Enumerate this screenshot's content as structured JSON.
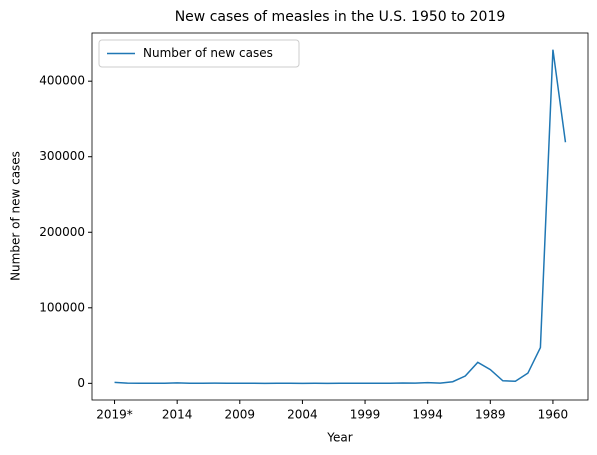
{
  "chart_data": {
    "type": "line",
    "title": "New cases of measles in the U.S. 1950 to 2019",
    "xlabel": "Year",
    "ylabel": "Number of new cases",
    "categories": [
      "2019*",
      null,
      null,
      null,
      null,
      "2014",
      null,
      null,
      null,
      null,
      "2009",
      null,
      null,
      null,
      null,
      "2004",
      null,
      null,
      null,
      null,
      "1999",
      null,
      null,
      null,
      null,
      "1994",
      null,
      null,
      null,
      null,
      "1989",
      null,
      null,
      null,
      null,
      "1960",
      null
    ],
    "series": [
      {
        "name": "Number of new cases",
        "color": "#1f77b4",
        "values": [
          1282,
          372,
          120,
          86,
          188,
          667,
          187,
          55,
          220,
          63,
          71,
          140,
          43,
          55,
          66,
          37,
          56,
          44,
          116,
          86,
          100,
          100,
          138,
          508,
          309,
          963,
          312,
          2126,
          9643,
          27786,
          18193,
          3396,
          2822,
          13506,
          47351,
          441703,
          319124
        ]
      }
    ],
    "xlim": [
      -1.8,
      37.8
    ],
    "ylim": [
      -22046,
      463786
    ],
    "yticks": [
      0,
      100000,
      200000,
      300000,
      400000
    ],
    "legend": "upper left"
  }
}
